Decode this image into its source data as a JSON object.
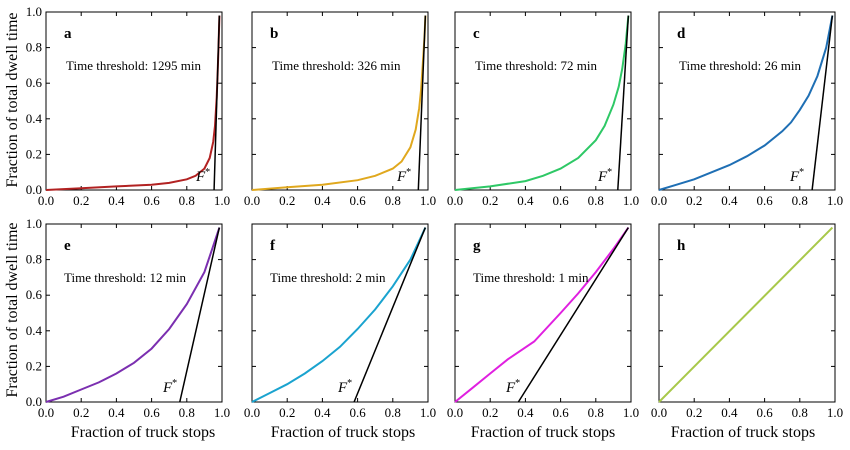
{
  "figure": {
    "ylabel": "Fraction of total dwell time",
    "xlabel": "Fraction of truck stops"
  },
  "chart_data": [
    {
      "type": "line",
      "label": "a",
      "annotation": "Time threshold: 1295 min",
      "fstar_label": "F",
      "fstar_sup": "*",
      "x_ticks": [
        "0.0",
        "0.2",
        "0.4",
        "0.6",
        "0.8",
        "1.0"
      ],
      "y_ticks": [
        "0.0",
        "0.2",
        "0.4",
        "0.6",
        "0.8",
        "1.0"
      ],
      "xlim": [
        0,
        1
      ],
      "ylim": [
        0,
        1
      ],
      "color": "#b22222",
      "series": [
        {
          "x": [
            0,
            0.2,
            0.4,
            0.6,
            0.7,
            0.8,
            0.85,
            0.9,
            0.93,
            0.95,
            0.96,
            0.97,
            0.975,
            0.98,
            0.985
          ],
          "y": [
            0,
            0.01,
            0.02,
            0.03,
            0.04,
            0.06,
            0.08,
            0.12,
            0.18,
            0.27,
            0.36,
            0.52,
            0.65,
            0.8,
            0.98
          ]
        }
      ],
      "tangent": {
        "x": [
          0.955,
          0.985
        ],
        "y": [
          0,
          0.98
        ]
      }
    },
    {
      "type": "line",
      "label": "b",
      "annotation": "Time threshold: 326 min",
      "fstar_label": "F",
      "fstar_sup": "*",
      "x_ticks": [
        "0.0",
        "0.2",
        "0.4",
        "0.6",
        "0.8",
        "1.0"
      ],
      "y_ticks": [],
      "xlim": [
        0,
        1
      ],
      "ylim": [
        0,
        1
      ],
      "color": "#e0a81e",
      "series": [
        {
          "x": [
            0,
            0.2,
            0.4,
            0.6,
            0.7,
            0.8,
            0.85,
            0.9,
            0.93,
            0.95,
            0.96,
            0.97,
            0.98,
            0.985
          ],
          "y": [
            0,
            0.015,
            0.03,
            0.055,
            0.08,
            0.12,
            0.16,
            0.24,
            0.34,
            0.46,
            0.56,
            0.7,
            0.86,
            0.98
          ]
        }
      ],
      "tangent": {
        "x": [
          0.945,
          0.985
        ],
        "y": [
          0,
          0.98
        ]
      }
    },
    {
      "type": "line",
      "label": "c",
      "annotation": "Time threshold: 72 min",
      "fstar_label": "F",
      "fstar_sup": "*",
      "x_ticks": [
        "0.0",
        "0.2",
        "0.4",
        "0.6",
        "0.8",
        "1.0"
      ],
      "y_ticks": [],
      "xlim": [
        0,
        1
      ],
      "ylim": [
        0,
        1
      ],
      "color": "#2ec866",
      "series": [
        {
          "x": [
            0,
            0.2,
            0.4,
            0.5,
            0.6,
            0.7,
            0.8,
            0.85,
            0.9,
            0.93,
            0.95,
            0.97,
            0.985
          ],
          "y": [
            0,
            0.02,
            0.05,
            0.08,
            0.12,
            0.18,
            0.28,
            0.36,
            0.48,
            0.58,
            0.68,
            0.82,
            0.98
          ]
        }
      ],
      "tangent": {
        "x": [
          0.925,
          0.985
        ],
        "y": [
          0,
          0.98
        ]
      }
    },
    {
      "type": "line",
      "label": "d",
      "annotation": "Time threshold: 26 min",
      "fstar_label": "F",
      "fstar_sup": "*",
      "x_ticks": [
        "0.0",
        "0.2",
        "0.4",
        "0.6",
        "0.8",
        "1.0"
      ],
      "y_ticks": [],
      "xlim": [
        0,
        1
      ],
      "ylim": [
        0,
        1
      ],
      "color": "#1f6fb4",
      "series": [
        {
          "x": [
            0,
            0.1,
            0.2,
            0.3,
            0.4,
            0.5,
            0.6,
            0.7,
            0.75,
            0.8,
            0.85,
            0.9,
            0.95,
            0.985
          ],
          "y": [
            0,
            0.03,
            0.06,
            0.1,
            0.14,
            0.19,
            0.25,
            0.33,
            0.38,
            0.45,
            0.53,
            0.64,
            0.8,
            0.98
          ]
        }
      ],
      "tangent": {
        "x": [
          0.87,
          0.985
        ],
        "y": [
          0,
          0.98
        ]
      }
    },
    {
      "type": "line",
      "label": "e",
      "annotation": "Time threshold: 12 min",
      "fstar_label": "F",
      "fstar_sup": "*",
      "x_ticks": [
        "0.0",
        "0.2",
        "0.4",
        "0.6",
        "0.8",
        "1.0"
      ],
      "y_ticks": [
        "0.0",
        "0.2",
        "0.4",
        "0.6",
        "0.8",
        "1.0"
      ],
      "xlim": [
        0,
        1
      ],
      "ylim": [
        0,
        1
      ],
      "color": "#7b2fb0",
      "series": [
        {
          "x": [
            0,
            0.1,
            0.2,
            0.3,
            0.4,
            0.5,
            0.6,
            0.7,
            0.8,
            0.9,
            0.985
          ],
          "y": [
            0,
            0.03,
            0.07,
            0.11,
            0.16,
            0.22,
            0.3,
            0.41,
            0.55,
            0.73,
            0.98
          ]
        }
      ],
      "tangent": {
        "x": [
          0.76,
          0.985
        ],
        "y": [
          0,
          0.98
        ]
      }
    },
    {
      "type": "line",
      "label": "f",
      "annotation": "Time threshold: 2 min",
      "fstar_label": "F",
      "fstar_sup": "*",
      "x_ticks": [
        "0.0",
        "0.2",
        "0.4",
        "0.6",
        "0.8",
        "1.0"
      ],
      "y_ticks": [],
      "xlim": [
        0,
        1
      ],
      "ylim": [
        0,
        1
      ],
      "color": "#1aa3cf",
      "series": [
        {
          "x": [
            0,
            0.1,
            0.2,
            0.3,
            0.4,
            0.5,
            0.6,
            0.7,
            0.8,
            0.9,
            0.985
          ],
          "y": [
            0,
            0.05,
            0.1,
            0.16,
            0.23,
            0.31,
            0.41,
            0.52,
            0.65,
            0.8,
            0.98
          ]
        }
      ],
      "tangent": {
        "x": [
          0.58,
          0.985
        ],
        "y": [
          0,
          0.98
        ]
      }
    },
    {
      "type": "line",
      "label": "g",
      "annotation": "Time threshold: 1 min",
      "fstar_label": "F",
      "fstar_sup": "*",
      "x_ticks": [
        "0.0",
        "0.2",
        "0.4",
        "0.6",
        "0.8",
        "1.0"
      ],
      "y_ticks": [],
      "xlim": [
        0,
        1
      ],
      "ylim": [
        0,
        1
      ],
      "color": "#e020e0",
      "series": [
        {
          "x": [
            0,
            0.1,
            0.2,
            0.3,
            0.45,
            0.6,
            0.7,
            0.8,
            0.9,
            0.985
          ],
          "y": [
            0,
            0.08,
            0.16,
            0.24,
            0.34,
            0.5,
            0.61,
            0.73,
            0.86,
            0.98
          ]
        }
      ],
      "tangent": {
        "x": [
          0.36,
          0.985
        ],
        "y": [
          0,
          0.98
        ]
      }
    },
    {
      "type": "line",
      "label": "h",
      "annotation": "",
      "fstar_label": "",
      "fstar_sup": "",
      "x_ticks": [
        "0.0",
        "0.2",
        "0.4",
        "0.6",
        "0.8",
        "1.0"
      ],
      "y_ticks": [],
      "xlim": [
        0,
        1
      ],
      "ylim": [
        0,
        1
      ],
      "color": "#a8c84a",
      "series": [
        {
          "x": [
            0,
            0.985
          ],
          "y": [
            0,
            0.98
          ]
        }
      ],
      "tangent": null
    }
  ]
}
